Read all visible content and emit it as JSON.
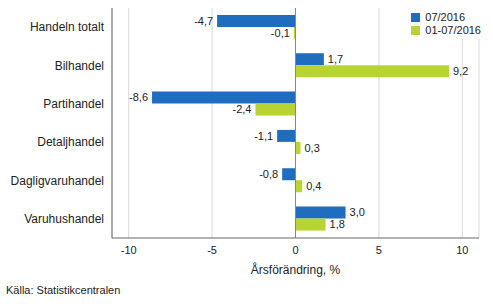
{
  "chart_data": {
    "type": "bar",
    "orientation": "horizontal",
    "categories": [
      "Handeln totalt",
      "Bilhandel",
      "Partihandel",
      "Detaljhandel",
      "Dagligvaruhandel",
      "Varuhushandel"
    ],
    "series": [
      {
        "name": "07/2016",
        "color": "#1f6dbf",
        "values": [
          -4.7,
          1.7,
          -8.6,
          -1.1,
          -0.8,
          3.0
        ],
        "value_labels": [
          "-4,7",
          "1,7",
          "-8,6",
          "-1,1",
          "-0,8",
          "3,0"
        ]
      },
      {
        "name": "01-07/2016",
        "color": "#b8d432",
        "values": [
          -0.1,
          9.2,
          -2.4,
          0.3,
          0.4,
          1.8
        ],
        "value_labels": [
          "-0,1",
          "9,2",
          "-2,4",
          "0,3",
          "0,4",
          "1,8"
        ]
      }
    ],
    "xlabel": "Årsförändring, %",
    "xlim": [
      -11,
      11
    ],
    "xticks": [
      -10,
      -5,
      0,
      5,
      10
    ],
    "grid": true,
    "legend": "upper right",
    "data_labels": true,
    "source": "Källa: Statistikcentralen"
  }
}
